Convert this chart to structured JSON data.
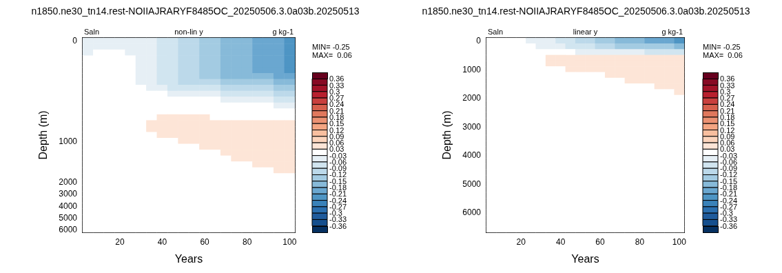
{
  "chart_data": [
    {
      "type": "heatmap",
      "title": "n1850.ne30_tn14.rest-NOIIAJRARYF8485OC_20250506.3.0a03b.20250513",
      "subtitle": "non-lin y",
      "xlabel": "Years",
      "ylabel": "Depth (m)",
      "annotations": [
        "Saln",
        "g kg-1",
        "MIN= -0.25",
        "MAX=  0.06"
      ],
      "categories": [
        null,
        null,
        null,
        "20",
        null,
        null,
        null,
        "40",
        null,
        null,
        null,
        "60",
        null,
        null,
        null,
        "80",
        null,
        null,
        null,
        "100"
      ],
      "y_categories": [
        "0",
        null,
        null,
        null,
        null,
        null,
        null,
        null,
        null,
        null,
        null,
        null,
        null,
        null,
        null,
        null,
        null,
        "1000",
        null,
        null,
        null,
        null,
        null,
        null,
        "2000",
        null,
        "3000",
        null,
        "4000",
        null,
        "5000",
        null,
        "6000"
      ],
      "cticks": [
        0.36,
        0.33,
        0.3,
        0.27,
        0.24,
        0.21,
        0.18,
        0.15,
        0.12,
        0.09,
        0.06,
        0.03,
        -0.03,
        -0.06,
        -0.09,
        -0.12,
        -0.15,
        -0.18,
        -0.21,
        -0.24,
        -0.27,
        -0.3,
        -0.33,
        -0.36
      ],
      "cells": [
        [
          -0.04,
          -0.04,
          -0.04,
          -0.04,
          -0.04,
          -0.04,
          -0.04,
          -0.07,
          -0.07,
          -0.1,
          -0.1,
          -0.13,
          -0.13,
          -0.16,
          -0.16,
          -0.16,
          -0.19,
          -0.19,
          -0.19,
          -0.22
        ],
        [
          -0.04,
          -0.04,
          -0.04,
          -0.04,
          -0.04,
          -0.04,
          -0.04,
          -0.07,
          -0.07,
          -0.1,
          -0.1,
          -0.13,
          -0.13,
          -0.16,
          -0.16,
          -0.16,
          -0.19,
          -0.19,
          -0.19,
          -0.22
        ],
        [
          -0.04,
          0,
          0,
          0,
          -0.04,
          -0.04,
          -0.04,
          -0.07,
          -0.07,
          -0.1,
          -0.1,
          -0.13,
          -0.13,
          -0.16,
          -0.16,
          -0.16,
          -0.19,
          -0.19,
          -0.19,
          -0.22
        ],
        [
          0,
          0,
          0,
          0,
          0,
          -0.04,
          -0.04,
          -0.07,
          -0.07,
          -0.1,
          -0.1,
          -0.13,
          -0.13,
          -0.16,
          -0.16,
          -0.16,
          -0.19,
          -0.19,
          -0.19,
          -0.22
        ],
        [
          0,
          0,
          0,
          0,
          0,
          -0.04,
          -0.04,
          -0.07,
          -0.07,
          -0.1,
          -0.1,
          -0.13,
          -0.13,
          -0.16,
          -0.16,
          -0.16,
          -0.19,
          -0.19,
          -0.19,
          -0.22
        ],
        [
          0,
          0,
          0,
          0,
          0,
          -0.04,
          -0.04,
          -0.07,
          -0.07,
          -0.1,
          -0.1,
          -0.13,
          -0.13,
          -0.16,
          -0.16,
          -0.16,
          -0.19,
          -0.19,
          -0.19,
          -0.22
        ],
        [
          0,
          0,
          0,
          0,
          0,
          -0.04,
          -0.04,
          -0.07,
          -0.07,
          -0.1,
          -0.1,
          -0.13,
          -0.13,
          -0.16,
          -0.16,
          -0.16,
          -0.16,
          -0.16,
          -0.19,
          -0.19
        ],
        [
          0,
          0,
          0,
          0,
          0,
          -0.04,
          -0.04,
          -0.07,
          -0.07,
          -0.1,
          -0.1,
          -0.1,
          -0.1,
          -0.13,
          -0.13,
          -0.13,
          -0.13,
          -0.13,
          -0.16,
          -0.16
        ],
        [
          0,
          0,
          0,
          0,
          0,
          0,
          -0.04,
          -0.04,
          -0.07,
          -0.07,
          -0.07,
          -0.07,
          -0.07,
          -0.1,
          -0.1,
          -0.1,
          -0.1,
          -0.1,
          -0.13,
          -0.13
        ],
        [
          0,
          0,
          0,
          0,
          0,
          0,
          0,
          0,
          -0.04,
          -0.04,
          -0.04,
          -0.04,
          -0.04,
          -0.07,
          -0.07,
          -0.07,
          -0.07,
          -0.07,
          -0.1,
          -0.1
        ],
        [
          0,
          0,
          0,
          0,
          0,
          0,
          0,
          0,
          0,
          0,
          0,
          0,
          0,
          -0.04,
          -0.04,
          -0.04,
          -0.04,
          -0.04,
          -0.07,
          -0.07
        ],
        [
          0,
          0,
          0,
          0,
          0,
          0,
          0,
          0,
          0,
          0,
          0,
          0,
          0,
          0,
          0,
          0,
          0,
          0,
          -0.04,
          -0.04
        ],
        [
          0,
          0,
          0,
          0,
          0,
          0,
          0,
          0,
          0,
          0,
          0,
          0,
          0,
          0,
          0,
          0,
          0,
          0,
          0,
          0
        ],
        [
          0,
          0,
          0,
          0,
          0,
          0,
          0,
          0.04,
          0.04,
          0.04,
          0.04,
          0.04,
          0,
          0,
          0,
          0,
          0,
          0,
          0,
          0
        ],
        [
          0,
          0,
          0,
          0,
          0,
          0,
          0.04,
          0.04,
          0.04,
          0.04,
          0.04,
          0.04,
          0.04,
          0.04,
          0.04,
          0.04,
          0.04,
          0.04,
          0.04,
          0.04
        ],
        [
          0,
          0,
          0,
          0,
          0,
          0,
          0.04,
          0.04,
          0.04,
          0.04,
          0.04,
          0.04,
          0.04,
          0.04,
          0.04,
          0.04,
          0.04,
          0.04,
          0.04,
          0.04
        ],
        [
          0,
          0,
          0,
          0,
          0,
          0,
          0,
          0.04,
          0.04,
          0.04,
          0.04,
          0.04,
          0.04,
          0.04,
          0.04,
          0.04,
          0.04,
          0.04,
          0.04,
          0.04
        ],
        [
          0,
          0,
          0,
          0,
          0,
          0,
          0,
          0,
          0,
          0.04,
          0.04,
          0.04,
          0.04,
          0.04,
          0.04,
          0.04,
          0.04,
          0.04,
          0.04,
          0.04
        ],
        [
          0,
          0,
          0,
          0,
          0,
          0,
          0,
          0,
          0,
          0,
          0,
          0.04,
          0.04,
          0.04,
          0.04,
          0.04,
          0.04,
          0.04,
          0.04,
          0.04
        ],
        [
          0,
          0,
          0,
          0,
          0,
          0,
          0,
          0,
          0,
          0,
          0,
          0,
          0,
          0.04,
          0.04,
          0.04,
          0.04,
          0.04,
          0.04,
          0.04
        ],
        [
          0,
          0,
          0,
          0,
          0,
          0,
          0,
          0,
          0,
          0,
          0,
          0,
          0,
          0,
          0.04,
          0.04,
          0.04,
          0.04,
          0.04,
          0.04
        ],
        [
          0,
          0,
          0,
          0,
          0,
          0,
          0,
          0,
          0,
          0,
          0,
          0,
          0,
          0,
          0,
          0,
          0.04,
          0.04,
          0.04,
          0.04
        ],
        [
          0,
          0,
          0,
          0,
          0,
          0,
          0,
          0,
          0,
          0,
          0,
          0,
          0,
          0,
          0,
          0,
          0,
          0,
          0.04,
          0.04
        ],
        [
          0,
          0,
          0,
          0,
          0,
          0,
          0,
          0,
          0,
          0,
          0,
          0,
          0,
          0,
          0,
          0,
          0,
          0,
          0,
          0
        ],
        [
          0,
          0,
          0,
          0,
          0,
          0,
          0,
          0,
          0,
          0,
          0,
          0,
          0,
          0,
          0,
          0,
          0,
          0,
          0,
          0
        ],
        [
          0,
          0,
          0,
          0,
          0,
          0,
          0,
          0,
          0,
          0,
          0,
          0,
          0,
          0,
          0,
          0,
          0,
          0,
          0,
          0
        ],
        [
          0,
          0,
          0,
          0,
          0,
          0,
          0,
          0,
          0,
          0,
          0,
          0,
          0,
          0,
          0,
          0,
          0,
          0,
          0,
          0
        ],
        [
          0,
          0,
          0,
          0,
          0,
          0,
          0,
          0,
          0,
          0,
          0,
          0,
          0,
          0,
          0,
          0,
          0,
          0,
          0,
          0
        ],
        [
          0,
          0,
          0,
          0,
          0,
          0,
          0,
          0,
          0,
          0,
          0,
          0,
          0,
          0,
          0,
          0,
          0,
          0,
          0,
          0
        ],
        [
          0,
          0,
          0,
          0,
          0,
          0,
          0,
          0,
          0,
          0,
          0,
          0,
          0,
          0,
          0,
          0,
          0,
          0,
          0,
          0
        ],
        [
          0,
          0,
          0,
          0,
          0,
          0,
          0,
          0,
          0,
          0,
          0,
          0,
          0,
          0,
          0,
          0,
          0,
          0,
          0,
          0
        ],
        [
          0,
          0,
          0,
          0,
          0,
          0,
          0,
          0,
          0,
          0,
          0,
          0,
          0,
          0,
          0,
          0,
          0,
          0,
          0,
          0
        ],
        [
          0,
          0,
          0,
          0,
          0,
          0,
          0,
          0,
          0,
          0,
          0,
          0,
          0,
          0,
          0,
          0,
          0,
          0,
          0,
          0
        ]
      ]
    },
    {
      "type": "heatmap",
      "title": "n1850.ne30_tn14.rest-NOIIAJRARYF8485OC_20250506.3.0a03b.20250513",
      "subtitle": "linear y",
      "xlabel": "Years",
      "ylabel": "Depth (m)",
      "annotations": [
        "Saln",
        "g kg-1",
        "MIN= -0.25",
        "MAX=  0.06"
      ],
      "categories": [
        null,
        null,
        null,
        "20",
        null,
        null,
        null,
        "40",
        null,
        null,
        null,
        "60",
        null,
        null,
        null,
        "80",
        null,
        null,
        null,
        "100"
      ],
      "y_categories": [
        "0",
        null,
        null,
        null,
        null,
        "1000",
        null,
        null,
        null,
        null,
        "2000",
        null,
        null,
        null,
        null,
        "3000",
        null,
        null,
        null,
        null,
        "4000",
        null,
        null,
        null,
        null,
        "5000",
        null,
        null,
        null,
        null,
        "6000",
        null,
        null,
        null
      ],
      "cticks": [
        0.36,
        0.33,
        0.3,
        0.27,
        0.24,
        0.21,
        0.18,
        0.15,
        0.12,
        0.09,
        0.06,
        0.03,
        -0.03,
        -0.06,
        -0.09,
        -0.12,
        -0.15,
        -0.18,
        -0.21,
        -0.24,
        -0.27,
        -0.3,
        -0.33,
        -0.36
      ],
      "cells": [
        [
          0,
          0,
          0,
          0,
          -0.04,
          -0.04,
          -0.04,
          -0.07,
          -0.07,
          -0.1,
          -0.1,
          -0.13,
          -0.13,
          -0.16,
          -0.16,
          -0.16,
          -0.19,
          -0.19,
          -0.19,
          -0.22
        ],
        [
          0,
          0,
          0,
          0,
          0,
          -0.04,
          -0.04,
          -0.04,
          -0.07,
          -0.07,
          -0.07,
          -0.1,
          -0.1,
          -0.13,
          -0.13,
          -0.13,
          -0.13,
          -0.13,
          -0.13,
          -0.16
        ],
        [
          0,
          0,
          0,
          0,
          0,
          0,
          0,
          0,
          0,
          -0.04,
          -0.04,
          -0.04,
          -0.04,
          -0.04,
          -0.04,
          -0.04,
          -0.07,
          -0.07,
          -0.07,
          -0.07
        ],
        [
          0,
          0,
          0,
          0,
          0,
          0,
          0.04,
          0.04,
          0.04,
          0.04,
          0.04,
          0.04,
          0.04,
          0.04,
          0.04,
          0.04,
          0.04,
          0.04,
          0.04,
          0.04
        ],
        [
          0,
          0,
          0,
          0,
          0,
          0,
          0.04,
          0.04,
          0.04,
          0.04,
          0.04,
          0.04,
          0.04,
          0.04,
          0.04,
          0.04,
          0.04,
          0.04,
          0.04,
          0.04
        ],
        [
          0,
          0,
          0,
          0,
          0,
          0,
          0,
          0,
          0.04,
          0.04,
          0.04,
          0.04,
          0.04,
          0.04,
          0.04,
          0.04,
          0.04,
          0.04,
          0.04,
          0.04
        ],
        [
          0,
          0,
          0,
          0,
          0,
          0,
          0,
          0,
          0,
          0,
          0,
          0,
          0.04,
          0.04,
          0.04,
          0.04,
          0.04,
          0.04,
          0.04,
          0.04
        ],
        [
          0,
          0,
          0,
          0,
          0,
          0,
          0,
          0,
          0,
          0,
          0,
          0,
          0,
          0,
          0.04,
          0.04,
          0.04,
          0.04,
          0.04,
          0.04
        ],
        [
          0,
          0,
          0,
          0,
          0,
          0,
          0,
          0,
          0,
          0,
          0,
          0,
          0,
          0,
          0,
          0,
          0,
          0.04,
          0.04,
          0.04
        ],
        [
          0,
          0,
          0,
          0,
          0,
          0,
          0,
          0,
          0,
          0,
          0,
          0,
          0,
          0,
          0,
          0,
          0,
          0,
          0,
          0.04
        ],
        [
          0,
          0,
          0,
          0,
          0,
          0,
          0,
          0,
          0,
          0,
          0,
          0,
          0,
          0,
          0,
          0,
          0,
          0,
          0,
          0
        ],
        [
          0,
          0,
          0,
          0,
          0,
          0,
          0,
          0,
          0,
          0,
          0,
          0,
          0,
          0,
          0,
          0,
          0,
          0,
          0,
          0
        ],
        [
          0,
          0,
          0,
          0,
          0,
          0,
          0,
          0,
          0,
          0,
          0,
          0,
          0,
          0,
          0,
          0,
          0,
          0,
          0,
          0
        ],
        [
          0,
          0,
          0,
          0,
          0,
          0,
          0,
          0,
          0,
          0,
          0,
          0,
          0,
          0,
          0,
          0,
          0,
          0,
          0,
          0
        ],
        [
          0,
          0,
          0,
          0,
          0,
          0,
          0,
          0,
          0,
          0,
          0,
          0,
          0,
          0,
          0,
          0,
          0,
          0,
          0,
          0
        ],
        [
          0,
          0,
          0,
          0,
          0,
          0,
          0,
          0,
          0,
          0,
          0,
          0,
          0,
          0,
          0,
          0,
          0,
          0,
          0,
          0
        ],
        [
          0,
          0,
          0,
          0,
          0,
          0,
          0,
          0,
          0,
          0,
          0,
          0,
          0,
          0,
          0,
          0,
          0,
          0,
          0,
          0
        ],
        [
          0,
          0,
          0,
          0,
          0,
          0,
          0,
          0,
          0,
          0,
          0,
          0,
          0,
          0,
          0,
          0,
          0,
          0,
          0,
          0
        ],
        [
          0,
          0,
          0,
          0,
          0,
          0,
          0,
          0,
          0,
          0,
          0,
          0,
          0,
          0,
          0,
          0,
          0,
          0,
          0,
          0
        ],
        [
          0,
          0,
          0,
          0,
          0,
          0,
          0,
          0,
          0,
          0,
          0,
          0,
          0,
          0,
          0,
          0,
          0,
          0,
          0,
          0
        ],
        [
          0,
          0,
          0,
          0,
          0,
          0,
          0,
          0,
          0,
          0,
          0,
          0,
          0,
          0,
          0,
          0,
          0,
          0,
          0,
          0
        ],
        [
          0,
          0,
          0,
          0,
          0,
          0,
          0,
          0,
          0,
          0,
          0,
          0,
          0,
          0,
          0,
          0,
          0,
          0,
          0,
          0
        ],
        [
          0,
          0,
          0,
          0,
          0,
          0,
          0,
          0,
          0,
          0,
          0,
          0,
          0,
          0,
          0,
          0,
          0,
          0,
          0,
          0
        ],
        [
          0,
          0,
          0,
          0,
          0,
          0,
          0,
          0,
          0,
          0,
          0,
          0,
          0,
          0,
          0,
          0,
          0,
          0,
          0,
          0
        ],
        [
          0,
          0,
          0,
          0,
          0,
          0,
          0,
          0,
          0,
          0,
          0,
          0,
          0,
          0,
          0,
          0,
          0,
          0,
          0,
          0
        ],
        [
          0,
          0,
          0,
          0,
          0,
          0,
          0,
          0,
          0,
          0,
          0,
          0,
          0,
          0,
          0,
          0,
          0,
          0,
          0,
          0
        ],
        [
          0,
          0,
          0,
          0,
          0,
          0,
          0,
          0,
          0,
          0,
          0,
          0,
          0,
          0,
          0,
          0,
          0,
          0,
          0,
          0
        ],
        [
          0,
          0,
          0,
          0,
          0,
          0,
          0,
          0,
          0,
          0,
          0,
          0,
          0,
          0,
          0,
          0,
          0,
          0,
          0,
          0
        ],
        [
          0,
          0,
          0,
          0,
          0,
          0,
          0,
          0,
          0,
          0,
          0,
          0,
          0,
          0,
          0,
          0,
          0,
          0,
          0,
          0
        ],
        [
          0,
          0,
          0,
          0,
          0,
          0,
          0,
          0,
          0,
          0,
          0,
          0,
          0,
          0,
          0,
          0,
          0,
          0,
          0,
          0
        ],
        [
          0,
          0,
          0,
          0,
          0,
          0,
          0,
          0,
          0,
          0,
          0,
          0,
          0,
          0,
          0,
          0,
          0,
          0,
          0,
          0
        ],
        [
          0,
          0,
          0,
          0,
          0,
          0,
          0,
          0,
          0,
          0,
          0,
          0,
          0,
          0,
          0,
          0,
          0,
          0,
          0,
          0
        ],
        [
          0,
          0,
          0,
          0,
          0,
          0,
          0,
          0,
          0,
          0,
          0,
          0,
          0,
          0,
          0,
          0,
          0,
          0,
          0,
          0
        ],
        [
          0,
          0,
          0,
          0,
          0,
          0,
          0,
          0,
          0,
          0,
          0,
          0,
          0,
          0,
          0,
          0,
          0,
          0,
          0,
          0
        ]
      ]
    }
  ]
}
